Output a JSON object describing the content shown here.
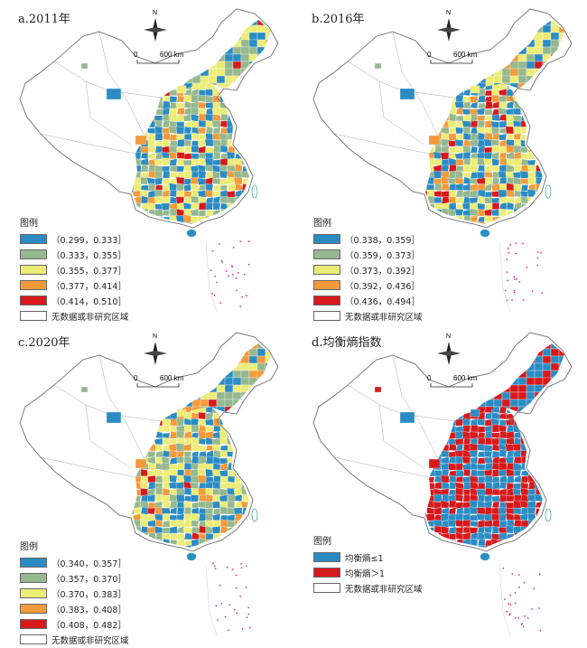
{
  "panels": [
    {
      "title": "a.2011年",
      "legend_title": "图例",
      "classes": [
        {
          "label": "（0.299，0.333］",
          "color": "#2b8cc4"
        },
        {
          "label": "（0.333，0.355］",
          "color": "#95b88f"
        },
        {
          "label": "（0.355，0.377］",
          "color": "#ecec76"
        },
        {
          "label": "（0.377，0.414］",
          "color": "#f39a3a"
        },
        {
          "label": "（0.414，0.510］",
          "color": "#d7191c"
        }
      ],
      "no_data": "无数据或非研究区域"
    },
    {
      "title": "b.2016年",
      "legend_title": "图例",
      "classes": [
        {
          "label": "（0.338，0.359］",
          "color": "#2b8cc4"
        },
        {
          "label": "（0.359，0.373］",
          "color": "#95b88f"
        },
        {
          "label": "（0.373，0.392］",
          "color": "#ecec76"
        },
        {
          "label": "（0.392，0.436］",
          "color": "#f39a3a"
        },
        {
          "label": "（0.436，0.494］",
          "color": "#d7191c"
        }
      ],
      "no_data": "无数据或非研究区域"
    },
    {
      "title": "c.2020年",
      "legend_title": "图例",
      "classes": [
        {
          "label": "（0.340，0.357］",
          "color": "#2b8cc4"
        },
        {
          "label": "（0.357，0.370］",
          "color": "#95b88f"
        },
        {
          "label": "（0.370，0.383］",
          "color": "#ecec76"
        },
        {
          "label": "（0.383，0.408］",
          "color": "#f39a3a"
        },
        {
          "label": "（0.408，0.482］",
          "color": "#d7191c"
        }
      ],
      "no_data": "无数据或非研究区域"
    },
    {
      "title": "d.均衡熵指数",
      "legend_title": "图例",
      "classes": [
        {
          "label": "均衡熵≤1",
          "color": "#2b8cc4"
        },
        {
          "label": "均衡熵＞1",
          "color": "#d7191c"
        }
      ],
      "no_data": "无数据或非研究区域"
    }
  ],
  "north_label": "N",
  "scale_zero": "0",
  "scale_dist": "600 km",
  "colors": {
    "no_data_fill": "#ffffff",
    "border": "#777777",
    "sea_islands": "#cc3399"
  }
}
